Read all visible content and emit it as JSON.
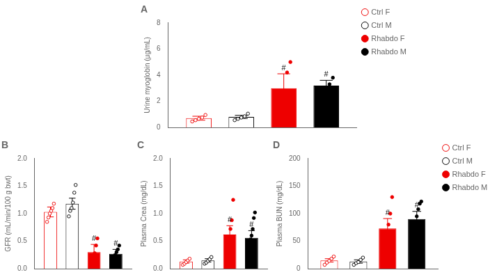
{
  "chart_data": [
    {
      "type": "bar",
      "title": "A",
      "ylabel": "Urine myoglobin (μg/mL)",
      "categories": [
        null
      ],
      "ylim": [
        0,
        8
      ],
      "yticks": [
        0,
        2,
        4,
        6,
        8
      ],
      "grid": false,
      "legend": "right",
      "tick_labels": "y",
      "series": [
        {
          "name": "Ctrl F",
          "color": "#EE0000",
          "marker": "circle-open",
          "values": [
            0.7
          ],
          "error": [
            0.15
          ],
          "dots": [
            [
              0.45,
              0.55,
              0.65,
              0.75,
              0.95
            ]
          ]
        },
        {
          "name": "Ctrl M",
          "color": "#000000",
          "marker": "circle-open",
          "values": [
            0.8
          ],
          "error": [
            0.12
          ],
          "dots": [
            [
              0.55,
              0.65,
              0.75,
              0.85,
              1.05
            ]
          ]
        },
        {
          "name": "Rhabdo F",
          "color": "#EE0000",
          "marker": "circle",
          "values": [
            3.0
          ],
          "error": [
            1.1
          ],
          "dots": [
            [
              1.8,
              2.2,
              2.8,
              4.2,
              5.0
            ]
          ],
          "annotations": [
            "#"
          ]
        },
        {
          "name": "Rhabdo M",
          "color": "#000000",
          "marker": "circle",
          "values": [
            3.2
          ],
          "error": [
            0.4
          ],
          "dots": [
            [
              2.2,
              2.8,
              3.0,
              3.3,
              3.8
            ]
          ],
          "annotations": [
            "#"
          ]
        }
      ]
    },
    {
      "type": "bar",
      "title": "B",
      "ylabel": "GFR (mL/min/100 g bwt)",
      "categories": [
        null
      ],
      "ylim": [
        0,
        2.0
      ],
      "yticks": [
        {
          "value": 0,
          "label": "0.0"
        },
        0.5,
        {
          "value": 1,
          "label": "1.0"
        },
        1.5,
        {
          "value": 2,
          "label": "2.0"
        }
      ],
      "grid": false,
      "legend": false,
      "tick_labels": "y",
      "series": [
        {
          "name": "Ctrl F",
          "color": "#EE0000",
          "marker": "circle-open",
          "values": [
            1.03
          ],
          "error": [
            0.09
          ],
          "dots": [
            [
              0.85,
              0.93,
              1.0,
              1.05,
              1.1,
              1.18
            ]
          ]
        },
        {
          "name": "Ctrl M",
          "color": "#000000",
          "marker": "circle-open",
          "values": [
            1.18
          ],
          "error": [
            0.1
          ],
          "dots": [
            [
              0.95,
              1.05,
              1.1,
              1.2,
              1.38,
              1.52
            ]
          ]
        },
        {
          "name": "Rhabdo F",
          "color": "#EE0000",
          "marker": "circle",
          "values": [
            0.3
          ],
          "error": [
            0.14
          ],
          "dots": [
            [
              0.04,
              0.1,
              0.18,
              0.28,
              0.42,
              0.55
            ]
          ],
          "annotations": [
            "#"
          ]
        },
        {
          "name": "Rhabdo M",
          "color": "#000000",
          "marker": "circle",
          "values": [
            0.27
          ],
          "error": [
            0.08
          ],
          "dots": [
            [
              0.1,
              0.18,
              0.25,
              0.3,
              0.35,
              0.42
            ]
          ],
          "annotations": [
            "#"
          ]
        }
      ]
    },
    {
      "type": "bar",
      "title": "C",
      "ylabel": "Plasma Crea (mg/dL)",
      "categories": [
        null
      ],
      "ylim": [
        0,
        2.0
      ],
      "yticks": [
        {
          "value": 0,
          "label": "0.0"
        },
        0.5,
        {
          "value": 1,
          "label": "1.0"
        },
        1.5,
        {
          "value": 2,
          "label": "2.0"
        }
      ],
      "grid": false,
      "legend": false,
      "tick_labels": "y",
      "series": [
        {
          "name": "Ctrl F",
          "color": "#EE0000",
          "marker": "circle-open",
          "values": [
            0.13
          ],
          "error": [
            0.03
          ],
          "dots": [
            [
              0.07,
              0.09,
              0.12,
              0.15,
              0.18
            ]
          ]
        },
        {
          "name": "Ctrl M",
          "color": "#000000",
          "marker": "circle-open",
          "values": [
            0.15
          ],
          "error": [
            0.03
          ],
          "dots": [
            [
              0.09,
              0.11,
              0.14,
              0.17,
              0.21
            ]
          ]
        },
        {
          "name": "Rhabdo F",
          "color": "#EE0000",
          "marker": "circle",
          "values": [
            0.62
          ],
          "error": [
            0.16
          ],
          "dots": [
            [
              0.28,
              0.42,
              0.55,
              0.72,
              0.88,
              1.25
            ]
          ],
          "annotations": [
            "#"
          ]
        },
        {
          "name": "Rhabdo M",
          "color": "#000000",
          "marker": "circle",
          "values": [
            0.56
          ],
          "error": [
            0.13
          ],
          "dots": [
            [
              0.32,
              0.43,
              0.53,
              0.6,
              0.72,
              0.92,
              1.02
            ]
          ],
          "annotations": [
            "#"
          ]
        }
      ]
    },
    {
      "type": "bar",
      "title": "D",
      "ylabel": "Plasma BUN (mg/dL)",
      "categories": [
        null
      ],
      "ylim": [
        0,
        200
      ],
      "yticks": [
        0,
        50,
        100,
        150,
        200
      ],
      "grid": false,
      "legend": "right",
      "tick_labels": "y",
      "series": [
        {
          "name": "Ctrl F",
          "color": "#EE0000",
          "marker": "circle-open",
          "values": [
            15
          ],
          "error": [
            3
          ],
          "dots": [
            [
              7,
              11,
              14,
              18,
              22
            ]
          ]
        },
        {
          "name": "Ctrl M",
          "color": "#000000",
          "marker": "circle-open",
          "values": [
            13
          ],
          "error": [
            3
          ],
          "dots": [
            [
              7,
              10,
              12,
              16,
              20
            ]
          ]
        },
        {
          "name": "Rhabdo F",
          "color": "#EE0000",
          "marker": "circle",
          "values": [
            73
          ],
          "error": [
            18
          ],
          "dots": [
            [
              28,
              48,
              65,
              80,
              100,
              130
            ]
          ],
          "annotations": [
            "#"
          ]
        },
        {
          "name": "Rhabdo M",
          "color": "#000000",
          "marker": "circle",
          "values": [
            90
          ],
          "error": [
            14
          ],
          "dots": [
            [
              60,
              75,
              85,
              95,
              108,
              118,
              122
            ]
          ],
          "annotations": [
            "#"
          ]
        }
      ]
    }
  ]
}
